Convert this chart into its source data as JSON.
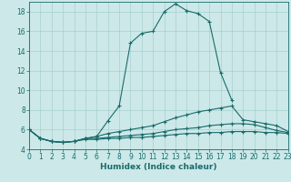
{
  "title": "",
  "xlabel": "Humidex (Indice chaleur)",
  "bg_color": "#cce8e8",
  "line_color": "#1a6b6b",
  "grid_color": "#a0c8c8",
  "xlim": [
    0,
    23
  ],
  "ylim": [
    4,
    19
  ],
  "yticks": [
    4,
    6,
    8,
    10,
    12,
    14,
    16,
    18
  ],
  "xticks": [
    0,
    1,
    2,
    3,
    4,
    5,
    6,
    7,
    8,
    9,
    10,
    11,
    12,
    13,
    14,
    15,
    16,
    17,
    18,
    19,
    20,
    21,
    22,
    23
  ],
  "series1_x": [
    0,
    1,
    2,
    3,
    4,
    5,
    6,
    7,
    8,
    9,
    10,
    11,
    12,
    13,
    14,
    15,
    16,
    17,
    18
  ],
  "series1_y": [
    6.0,
    5.1,
    4.8,
    4.7,
    4.8,
    5.1,
    5.3,
    6.9,
    8.4,
    14.8,
    15.8,
    16.0,
    18.0,
    18.8,
    18.1,
    17.8,
    17.0,
    11.8,
    9.0
  ],
  "series2_x": [
    0,
    1,
    2,
    3,
    4,
    5,
    6,
    7,
    8,
    9,
    10,
    11,
    12,
    13,
    14,
    15,
    16,
    17,
    18,
    19,
    20,
    21,
    22,
    23
  ],
  "series2_y": [
    6.0,
    5.1,
    4.8,
    4.7,
    4.8,
    5.1,
    5.3,
    5.6,
    5.8,
    6.0,
    6.2,
    6.4,
    6.8,
    7.2,
    7.5,
    7.8,
    8.0,
    8.2,
    8.4,
    7.0,
    6.8,
    6.6,
    6.4,
    5.8
  ],
  "series3_x": [
    0,
    1,
    2,
    3,
    4,
    5,
    6,
    7,
    8,
    9,
    10,
    11,
    12,
    13,
    14,
    15,
    16,
    17,
    18,
    19,
    20,
    21,
    22,
    23
  ],
  "series3_y": [
    6.0,
    5.1,
    4.8,
    4.7,
    4.8,
    5.1,
    5.1,
    5.2,
    5.3,
    5.4,
    5.5,
    5.6,
    5.8,
    6.0,
    6.1,
    6.2,
    6.4,
    6.5,
    6.6,
    6.6,
    6.5,
    6.2,
    5.9,
    5.7
  ],
  "series4_x": [
    0,
    1,
    2,
    3,
    4,
    5,
    6,
    7,
    8,
    9,
    10,
    11,
    12,
    13,
    14,
    15,
    16,
    17,
    18,
    19,
    20,
    21,
    22,
    23
  ],
  "series4_y": [
    6.0,
    5.1,
    4.8,
    4.7,
    4.8,
    5.0,
    5.0,
    5.1,
    5.1,
    5.2,
    5.2,
    5.3,
    5.4,
    5.5,
    5.6,
    5.6,
    5.7,
    5.7,
    5.8,
    5.8,
    5.8,
    5.7,
    5.7,
    5.6
  ],
  "xlabel_fontsize": 6.5,
  "tick_fontsize": 5.5,
  "linewidth": 0.8,
  "markersize": 3
}
